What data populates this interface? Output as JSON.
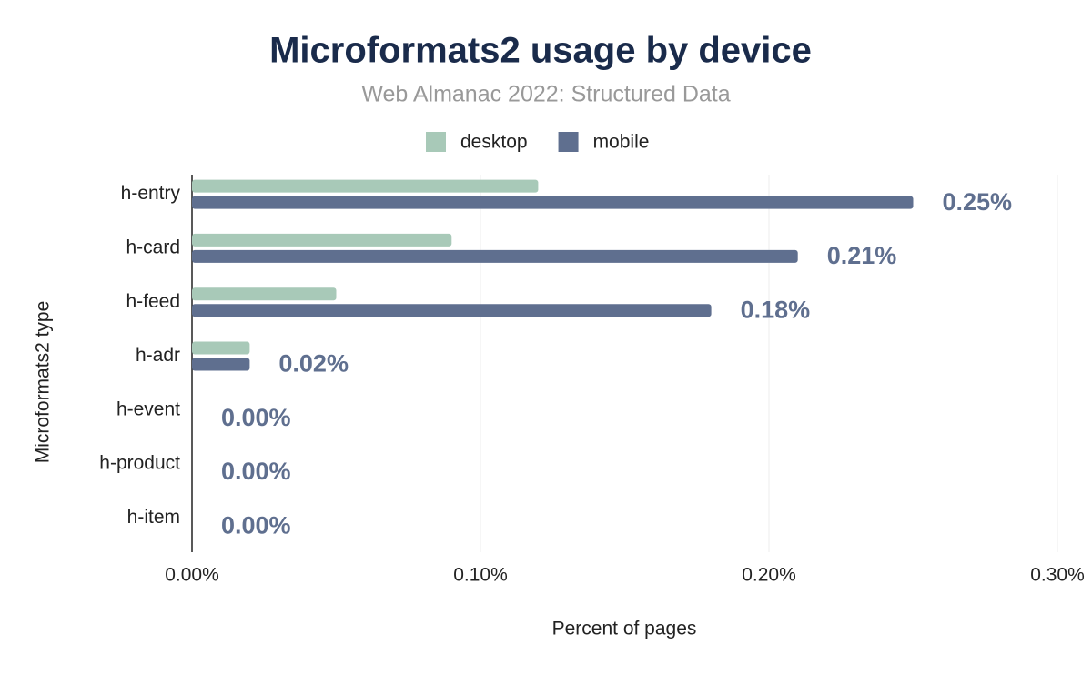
{
  "chart_data": {
    "type": "hbar",
    "title": "Microformats2 usage by device",
    "subtitle": "Web Almanac 2022: Structured Data",
    "x_label": "Percent of pages",
    "y_label": "Microformats2 type",
    "categories": [
      "h-entry",
      "h-card",
      "h-feed",
      "h-adr",
      "h-event",
      "h-product",
      "h-item"
    ],
    "series": [
      {
        "name": "desktop",
        "color": "#a8c9b8",
        "values": [
          0.12,
          0.09,
          0.05,
          0.02,
          0,
          0,
          0
        ]
      },
      {
        "name": "mobile",
        "color": "#5f6f8f",
        "values": [
          0.25,
          0.21,
          0.18,
          0.02,
          0,
          0,
          0
        ],
        "value_labels": [
          "0.25%",
          "0.21%",
          "0.18%",
          "0.02%",
          "0.00%",
          "0.00%",
          "0.00%"
        ]
      }
    ],
    "xlim": [
      0,
      0.3
    ],
    "xticks": [
      {
        "value": 0,
        "label": "0.00%"
      },
      {
        "value": 0.1,
        "label": "0.10%"
      },
      {
        "value": 0.2,
        "label": "0.20%"
      },
      {
        "value": 0.3,
        "label": "0.30%"
      }
    ],
    "grid": true,
    "legend": "top"
  }
}
